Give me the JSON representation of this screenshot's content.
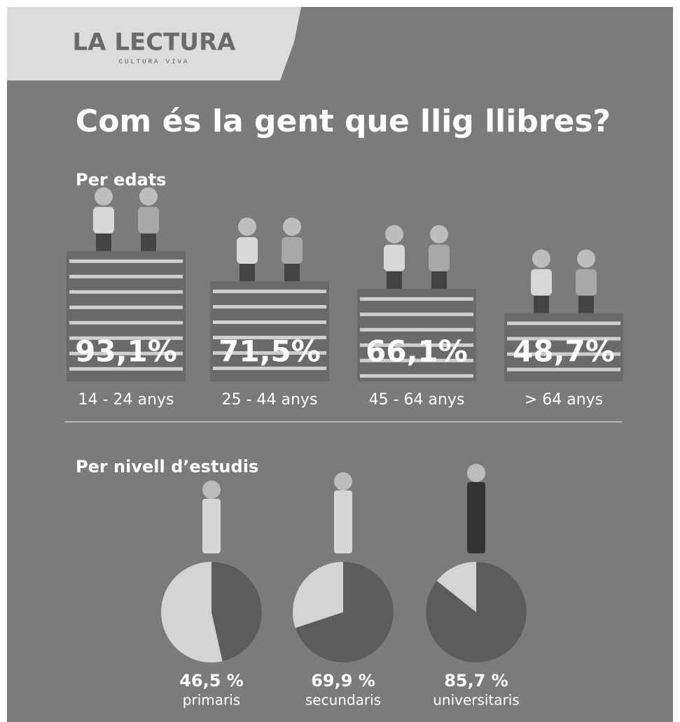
{
  "header": {
    "brand": "LA LECTURA",
    "tagline": "CULTURA VIVA"
  },
  "title": "Com és la gent que llig llibres?",
  "chart_data": [
    {
      "type": "pictogram",
      "title": "Per edats",
      "categories": [
        "14 - 24 anys",
        "25 - 44 anys",
        "45 - 64 anys",
        "> 64 anys"
      ],
      "values": [
        93.1,
        71.5,
        66.1,
        48.7
      ],
      "value_labels": [
        "93,1%",
        "71,5%",
        "66,1%",
        "48,7%"
      ],
      "color": "#6a6a6a"
    },
    {
      "type": "pie",
      "title": "Per nivell d’estudis",
      "categories": [
        "primaris",
        "secundaris",
        "universitaris"
      ],
      "values": [
        46.5,
        69.9,
        85.7
      ],
      "value_labels": [
        "46,5 %",
        "69,9 %",
        "85,7 %"
      ],
      "color": "#5c5c5c",
      "rest_color": "#d4d4d4"
    }
  ]
}
